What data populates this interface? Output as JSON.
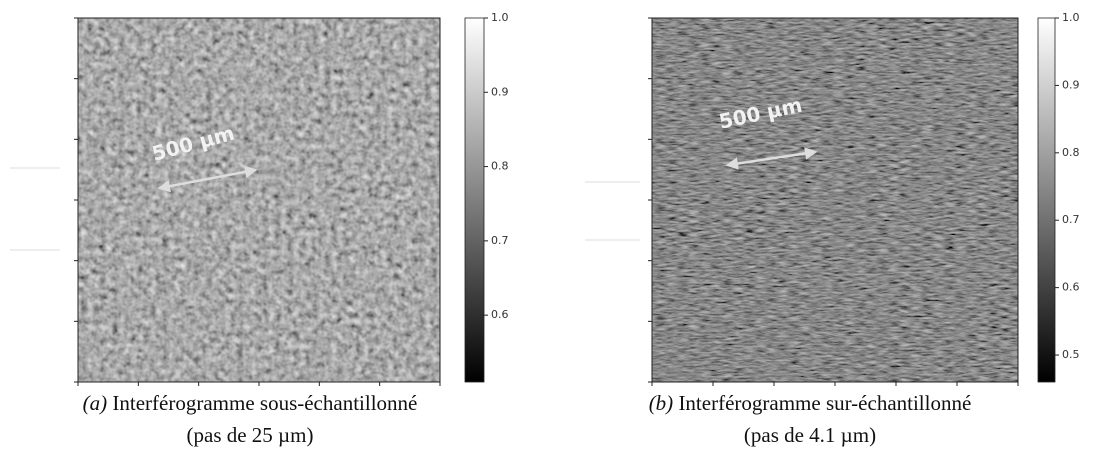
{
  "figures": [
    {
      "annotation": "500 µm",
      "colorbar": {
        "lim": [
          0.51,
          1.0
        ],
        "ticks": [
          0.6,
          0.7,
          0.8,
          0.9,
          {
            "value": 1.0,
            "label": "1.0"
          }
        ]
      },
      "caption": {
        "label": "(a)",
        "text": "Interférogramme sous-échantillonné",
        "line2": "(pas de 25 µm)"
      }
    },
    {
      "annotation": "500 µm",
      "colorbar": {
        "lim": [
          0.46,
          1.0
        ],
        "ticks": [
          0.5,
          0.6,
          0.7,
          0.8,
          0.9,
          {
            "value": 1.0,
            "label": "1.0"
          }
        ]
      },
      "caption": {
        "label": "(b)",
        "text": "Interférogramme sur-échantillonné",
        "line2": "(pas de 4.1 µm)"
      }
    }
  ]
}
